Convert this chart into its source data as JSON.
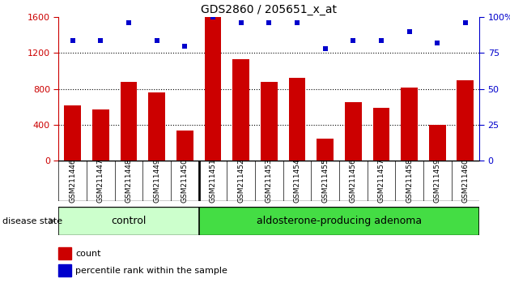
{
  "title": "GDS2860 / 205651_x_at",
  "samples": [
    "GSM211446",
    "GSM211447",
    "GSM211448",
    "GSM211449",
    "GSM211450",
    "GSM211451",
    "GSM211452",
    "GSM211453",
    "GSM211454",
    "GSM211455",
    "GSM211456",
    "GSM211457",
    "GSM211458",
    "GSM211459",
    "GSM211460"
  ],
  "counts": [
    620,
    570,
    880,
    760,
    340,
    1600,
    1130,
    880,
    920,
    250,
    650,
    590,
    820,
    400,
    900
  ],
  "percentiles": [
    84,
    84,
    96,
    84,
    80,
    100,
    96,
    96,
    96,
    78,
    84,
    84,
    90,
    82,
    96
  ],
  "control_count": 5,
  "ylim_left": [
    0,
    1600
  ],
  "ylim_right": [
    0,
    100
  ],
  "yticks_left": [
    0,
    400,
    800,
    1200,
    1600
  ],
  "yticks_right": [
    0,
    25,
    50,
    75,
    100
  ],
  "bar_color": "#cc0000",
  "scatter_color": "#0000cc",
  "control_bg": "#ccffcc",
  "adenoma_bg": "#44dd44",
  "tick_area_bg": "#cccccc",
  "disease_state_label": "disease state",
  "control_label": "control",
  "adenoma_label": "aldosterone-producing adenoma",
  "legend_count": "count",
  "legend_pct": "percentile rank within the sample"
}
